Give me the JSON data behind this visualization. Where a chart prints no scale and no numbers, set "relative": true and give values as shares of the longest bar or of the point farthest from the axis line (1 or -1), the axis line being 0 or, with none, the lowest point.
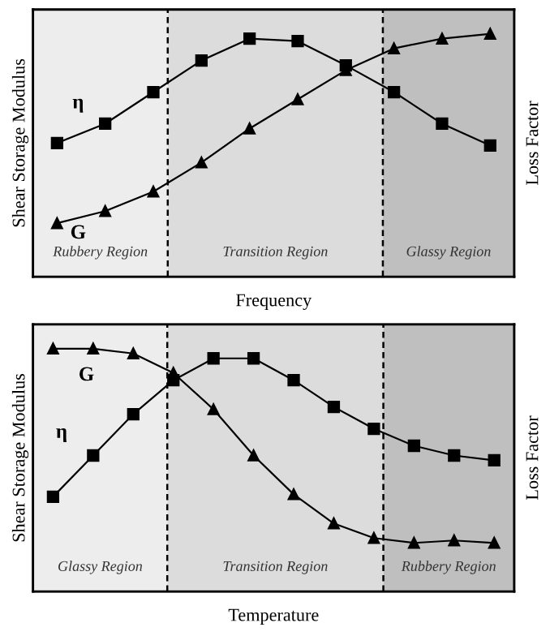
{
  "chart_data": [
    {
      "type": "line",
      "relative": true,
      "xlabel": "Frequency",
      "ylabel": "Shear Storage Modulus",
      "y2label": "Loss Factor",
      "tick_labels": false,
      "categories": [
        null,
        null,
        null,
        null,
        null,
        null,
        null,
        null,
        null,
        null
      ],
      "series": [
        {
          "name": "η",
          "color": "#000000",
          "marker": "square",
          "values": [
            0.55,
            0.63,
            0.76,
            0.89,
            0.98,
            0.97,
            0.87,
            0.76,
            0.63,
            0.54
          ]
        },
        {
          "name": "G",
          "color": "#000000",
          "marker": "triangle",
          "values": [
            0.22,
            0.27,
            0.35,
            0.47,
            0.61,
            0.73,
            0.85,
            0.94,
            0.98,
            1.0
          ]
        }
      ],
      "annotations": [
        "Rubbery Region",
        "Transition Region",
        "Glassy Region"
      ]
    },
    {
      "type": "line",
      "relative": true,
      "xlabel": "Temperature",
      "ylabel": "Shear Storage Modulus",
      "y2label": "Loss Factor",
      "tick_labels": false,
      "categories": [
        null,
        null,
        null,
        null,
        null,
        null,
        null,
        null,
        null,
        null,
        null,
        null
      ],
      "series": [
        {
          "name": "G",
          "color": "#000000",
          "marker": "triangle",
          "values": [
            1.0,
            1.0,
            0.98,
            0.9,
            0.75,
            0.56,
            0.4,
            0.28,
            0.22,
            0.2,
            0.21,
            0.2
          ]
        },
        {
          "name": "η",
          "color": "#000000",
          "marker": "square",
          "values": [
            0.39,
            0.56,
            0.73,
            0.87,
            0.96,
            0.96,
            0.87,
            0.76,
            0.67,
            0.6,
            0.56,
            0.54
          ]
        }
      ],
      "annotations": [
        "Glassy Region",
        "Transition Region",
        "Rubbery Region"
      ]
    }
  ]
}
